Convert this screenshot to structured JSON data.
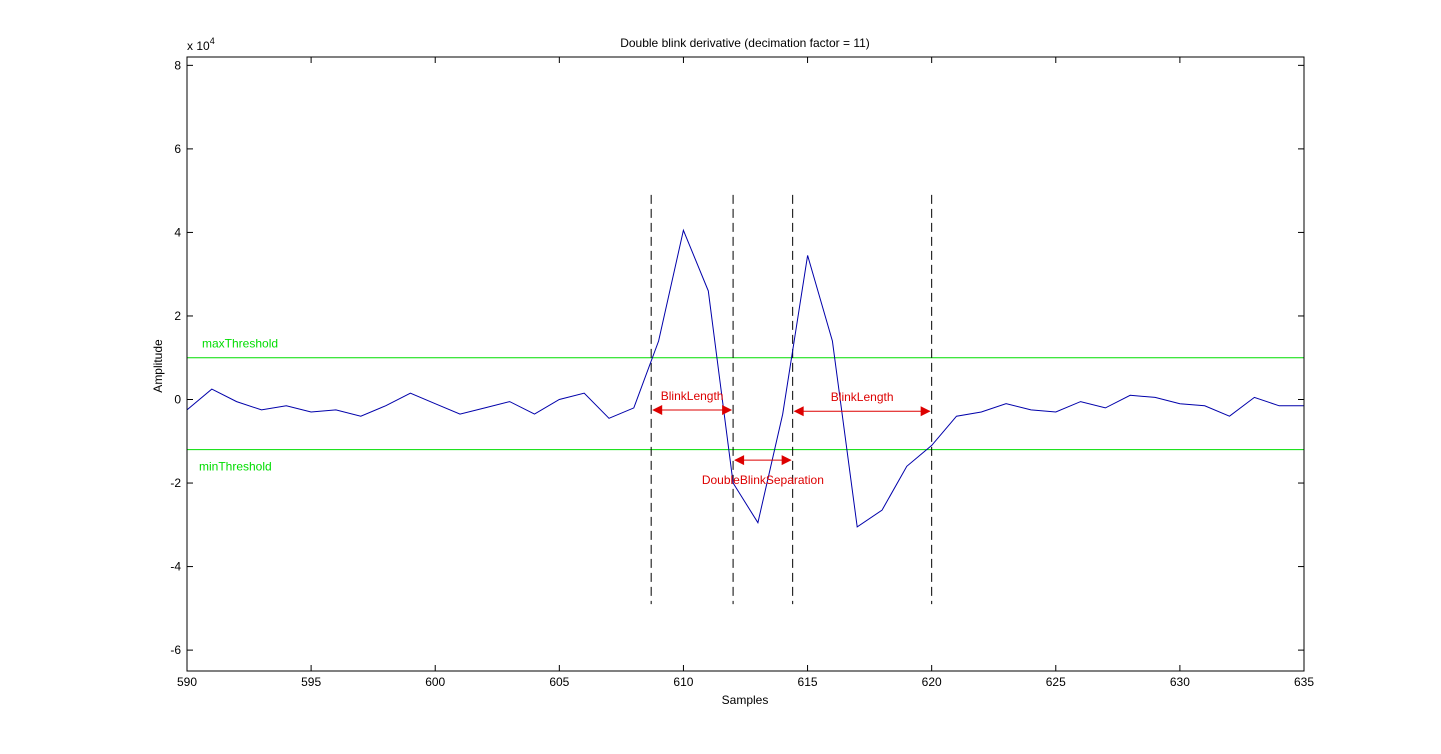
{
  "chart_data": {
    "type": "line",
    "title": "Double blink derivative (decimation factor = 11)",
    "xlabel": "Samples",
    "ylabel": "Amplitude",
    "y_scale_label": "x 10",
    "y_scale_exponent": "4",
    "xlim": [
      590,
      635
    ],
    "ylim": [
      -6.5,
      8.2
    ],
    "x_ticks": [
      590,
      595,
      600,
      605,
      610,
      615,
      620,
      625,
      630,
      635
    ],
    "y_ticks": [
      -6,
      -4,
      -2,
      0,
      2,
      4,
      6,
      8
    ],
    "grid": false,
    "series": [
      {
        "color": "#0000aa",
        "x": [
          590,
          591,
          592,
          593,
          594,
          595,
          596,
          597,
          598,
          599,
          600,
          601,
          602,
          603,
          604,
          605,
          606,
          607,
          608,
          609,
          610,
          611,
          612,
          613,
          614,
          615,
          616,
          617,
          618,
          619,
          620,
          621,
          622,
          623,
          624,
          625,
          626,
          627,
          628,
          629,
          630,
          631,
          632,
          633,
          634,
          635
        ],
        "values": [
          -0.25,
          0.25,
          -0.05,
          -0.25,
          -0.15,
          -0.3,
          -0.25,
          -0.4,
          -0.15,
          0.15,
          -0.1,
          -0.35,
          -0.2,
          -0.05,
          -0.35,
          0.0,
          0.15,
          -0.45,
          -0.2,
          1.4,
          4.05,
          2.6,
          -2.0,
          -2.95,
          -0.35,
          3.45,
          1.4,
          -3.05,
          -2.65,
          -1.6,
          -1.1,
          -0.4,
          -0.3,
          -0.1,
          -0.25,
          -0.3,
          -0.05,
          -0.2,
          0.1,
          0.05,
          -0.1,
          -0.15,
          -0.4,
          0.05,
          -0.15,
          -0.15
        ]
      }
    ],
    "thresholds": [
      {
        "name": "maxThreshold",
        "value": 1.0,
        "color": "#00dd00"
      },
      {
        "name": "minThreshold",
        "value": -1.2,
        "color": "#00dd00"
      }
    ],
    "vertical_markers": [
      608.7,
      612.0,
      614.4,
      620.0
    ],
    "annotations": [
      {
        "label": "BlinkLength",
        "x_from": 608.7,
        "x_to": 612.0,
        "y": -0.25,
        "color": "#dd0000"
      },
      {
        "label": "DoubleBlinkSeparation",
        "x_from": 612.0,
        "x_to": 614.4,
        "y": -1.45,
        "color": "#dd0000"
      },
      {
        "label": "BlinkLength",
        "x_from": 614.4,
        "x_to": 620.0,
        "y": -0.28,
        "color": "#dd0000"
      }
    ]
  }
}
